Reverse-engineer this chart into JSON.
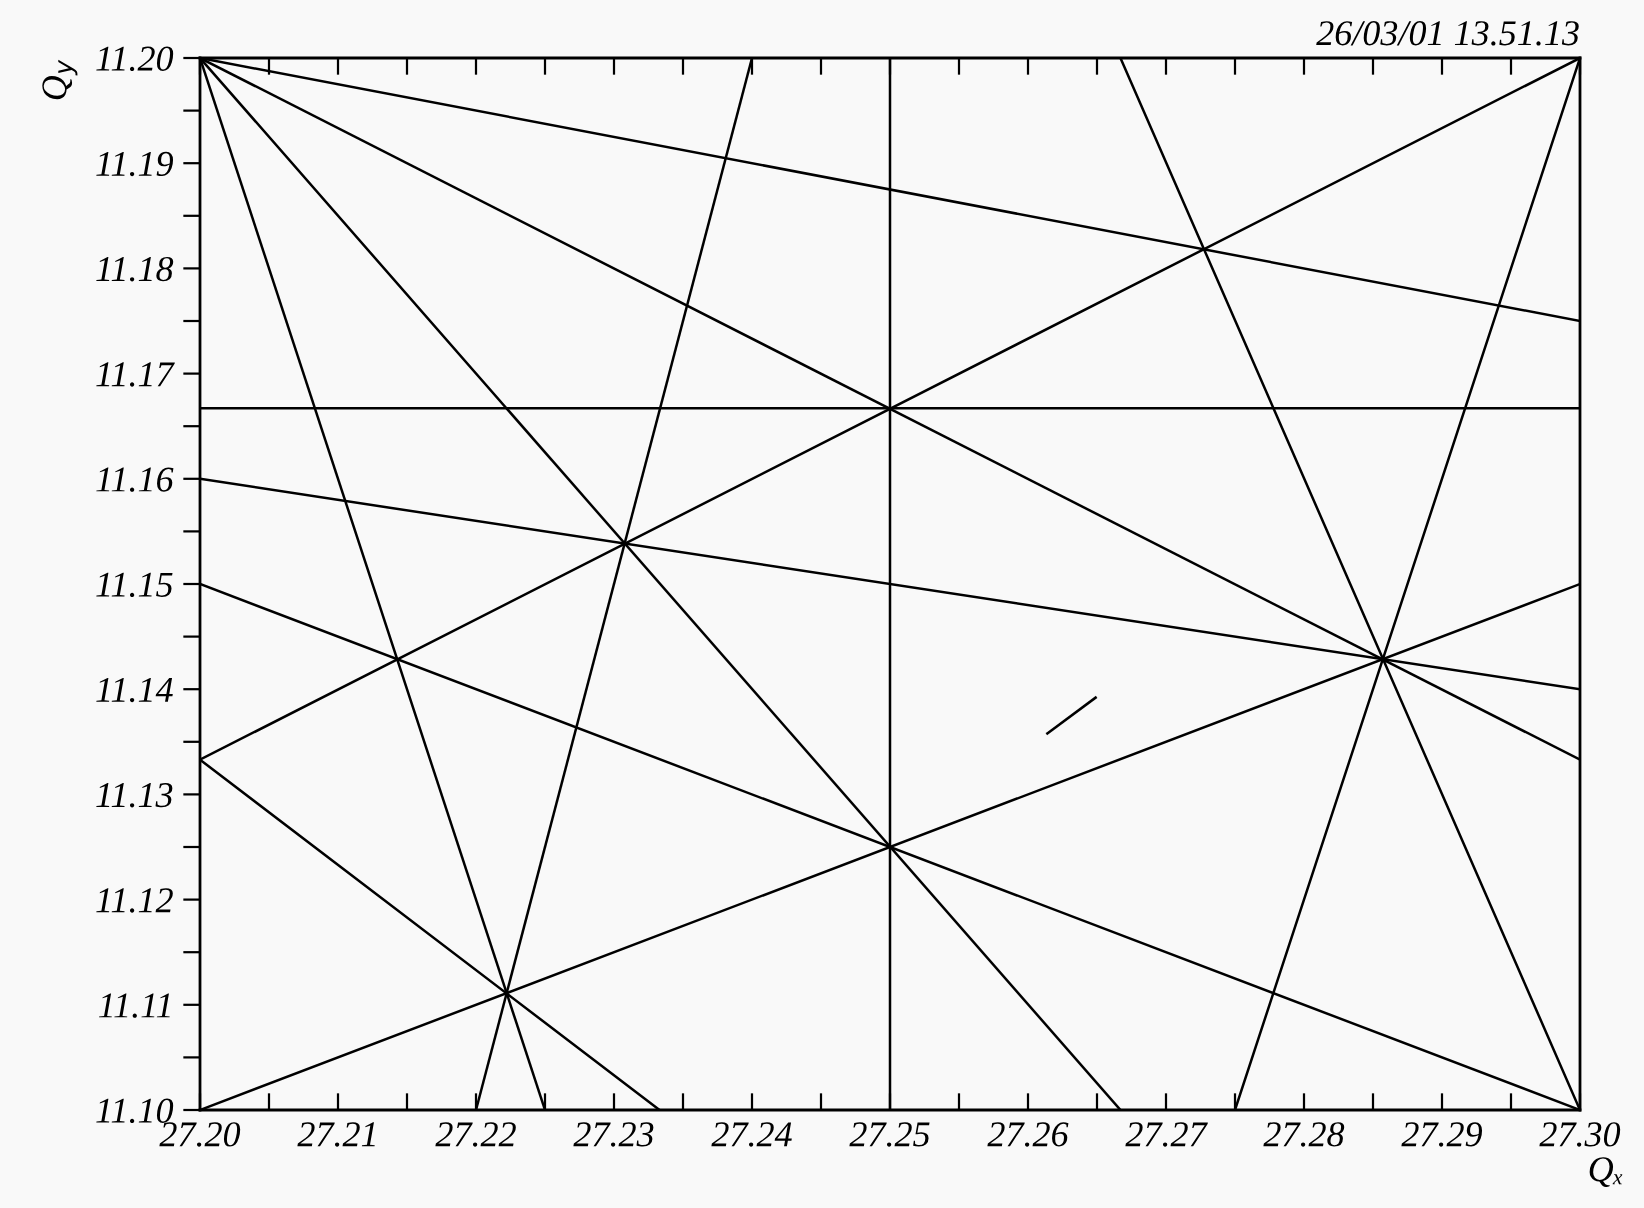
{
  "chart_data": {
    "type": "line",
    "xlabel": "Qₓ",
    "ylabel": "Q$_{y}$",
    "annotations": [
      "26/03/01 13.51.13"
    ],
    "xlim": [
      27.2,
      27.3
    ],
    "ylim": [
      11.1,
      11.2
    ],
    "xticks": [
      {
        "value": 27.2,
        "label": "27.20"
      },
      27.21,
      27.22,
      27.23,
      27.24,
      27.25,
      27.26,
      27.27,
      27.28,
      27.29,
      {
        "value": 27.3,
        "label": "27.30"
      },
      {
        "value": 27.205,
        "label": null
      },
      {
        "value": 27.215,
        "label": null
      },
      {
        "value": 27.225,
        "label": null
      },
      {
        "value": 27.235,
        "label": null
      },
      {
        "value": 27.245,
        "label": null
      },
      {
        "value": 27.255,
        "label": null
      },
      {
        "value": 27.265,
        "label": null
      },
      {
        "value": 27.275,
        "label": null
      },
      {
        "value": 27.285,
        "label": null
      },
      {
        "value": 27.295,
        "label": null
      }
    ],
    "yticks": [
      {
        "value": 11.1,
        "label": "11.10"
      },
      11.11,
      11.12,
      11.13,
      11.14,
      11.15,
      11.16,
      11.17,
      11.18,
      11.19,
      {
        "value": 11.2,
        "label": "11.20"
      },
      {
        "value": 11.105,
        "label": null
      },
      {
        "value": 11.115,
        "label": null
      },
      {
        "value": 11.125,
        "label": null
      },
      {
        "value": 11.135,
        "label": null
      },
      {
        "value": 11.145,
        "label": null
      },
      {
        "value": 11.155,
        "label": null
      },
      {
        "value": 11.165,
        "label": null
      },
      {
        "value": 11.175,
        "label": null
      },
      {
        "value": 11.185,
        "label": null
      },
      {
        "value": 11.195,
        "label": null
      }
    ],
    "ref_lines": [
      {
        "axis": "x",
        "value": 27.25,
        "color": "#000000"
      }
    ],
    "grid": false,
    "legend": false,
    "marker": "none",
    "line_style": "solid",
    "series": [
      {
        "color": "#000000",
        "x": [
          27.2,
          27.3
        ],
        "values": [
          11.1667,
          11.1667
        ]
      },
      {
        "color": "#000000",
        "x": [
          27.2,
          27.3
        ],
        "values": [
          11.2,
          11.175
        ]
      },
      {
        "color": "#000000",
        "x": [
          27.2,
          27.3
        ],
        "values": [
          11.2,
          11.1333
        ]
      },
      {
        "color": "#000000",
        "x": [
          27.2,
          27.2667
        ],
        "values": [
          11.2,
          11.1
        ]
      },
      {
        "color": "#000000",
        "x": [
          27.2,
          27.225
        ],
        "values": [
          11.2,
          11.1
        ]
      },
      {
        "color": "#000000",
        "x": [
          27.2,
          27.3
        ],
        "values": [
          11.16,
          11.14
        ]
      },
      {
        "color": "#000000",
        "x": [
          27.2,
          27.3
        ],
        "values": [
          11.15,
          11.1
        ]
      },
      {
        "color": "#000000",
        "x": [
          27.2,
          27.3
        ],
        "values": [
          11.1333,
          11.2
        ]
      },
      {
        "color": "#000000",
        "x": [
          27.2,
          27.2333
        ],
        "values": [
          11.1333,
          11.1
        ]
      },
      {
        "color": "#000000",
        "x": [
          27.2,
          27.3
        ],
        "values": [
          11.1,
          11.15
        ]
      },
      {
        "color": "#000000",
        "x": [
          27.22,
          27.24
        ],
        "values": [
          11.1,
          11.2
        ]
      },
      {
        "color": "#000000",
        "x": [
          27.2667,
          27.3
        ],
        "values": [
          11.2,
          11.1
        ]
      },
      {
        "color": "#000000",
        "x": [
          27.275,
          27.3
        ],
        "values": [
          11.1,
          11.2
        ]
      },
      {
        "color": "#000000",
        "x": [
          27.2614,
          27.2649
        ],
        "values": [
          11.1358,
          11.1392
        ]
      }
    ]
  }
}
